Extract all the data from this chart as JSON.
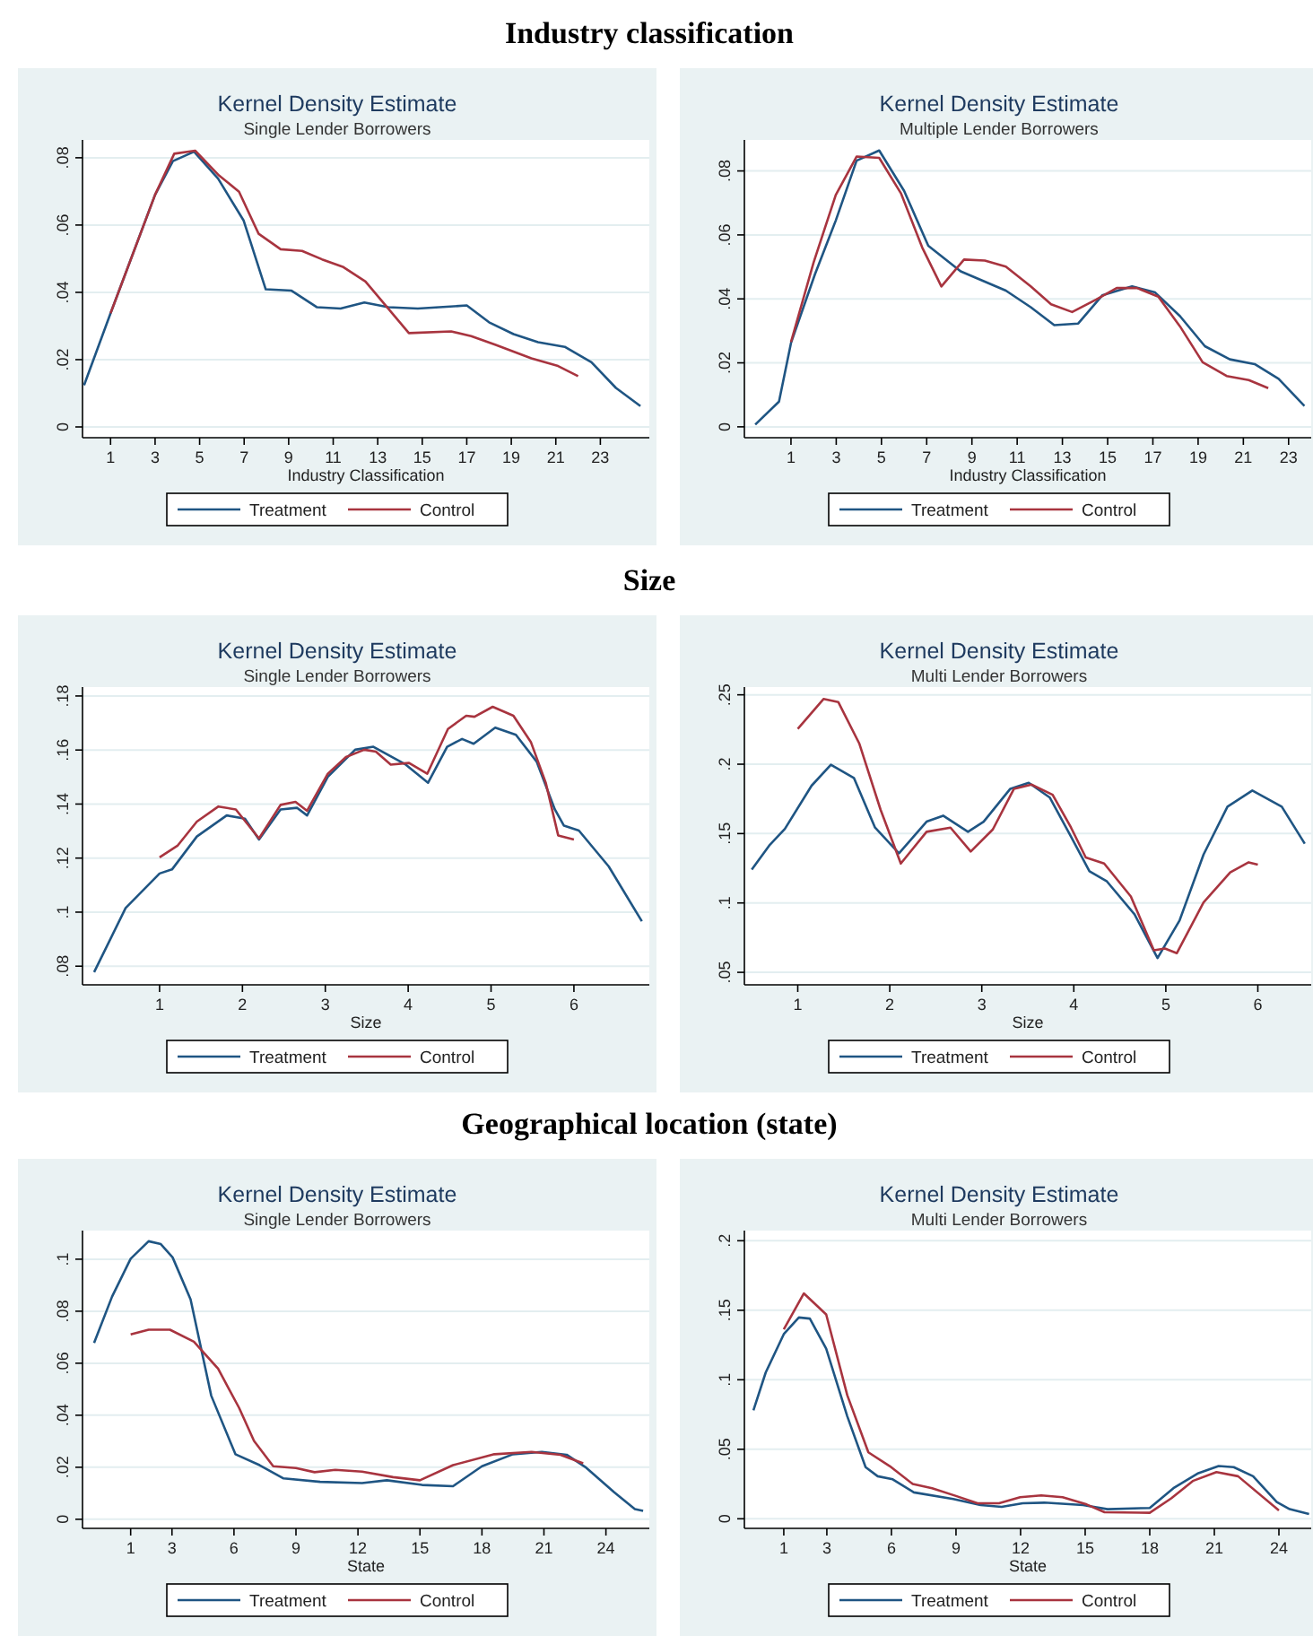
{
  "chart_data": [
    {
      "type": "line",
      "annotations": [
        "Industry classification"
      ],
      "title": "Kernel Density Estimate",
      "subtitle": "Single Lender Borrowers",
      "xlabel": "Industry Classification",
      "xlim": [
        -0.26,
        25.2
      ],
      "xticks": [
        1,
        3,
        5,
        7,
        9,
        11,
        13,
        15,
        17,
        19,
        21,
        23
      ],
      "ylim": [
        -0.0032,
        0.0853
      ],
      "yticks": [
        {
          "value": 0,
          "label": "0"
        },
        {
          "value": 0.02,
          "label": ".02"
        },
        {
          "value": 0.04,
          "label": ".04"
        },
        {
          "value": 0.06,
          "label": ".06"
        },
        {
          "value": 0.08,
          "label": ".08"
        }
      ],
      "grid": "y",
      "legend": "bottom",
      "series": [
        {
          "name": "Treatment",
          "color": "#1f5583",
          "x": [
            -0.19,
            1,
            3,
            3.8,
            4.75,
            5.83,
            6.98,
            7.97,
            9.13,
            10.26,
            11.33,
            12.4,
            13.48,
            14.8,
            17.0,
            18.0,
            19.1,
            20.2,
            21.4,
            22.6,
            23.7,
            24.8
          ],
          "values": [
            0.0124,
            0.0338,
            0.069,
            0.079,
            0.0818,
            0.0738,
            0.0613,
            0.0409,
            0.0405,
            0.0356,
            0.0352,
            0.037,
            0.0356,
            0.0352,
            0.0361,
            0.0311,
            0.0276,
            0.0252,
            0.0238,
            0.0192,
            0.0116,
            0.0062
          ]
        },
        {
          "name": "Control",
          "color": "#a8343f",
          "x": [
            1,
            3,
            3.86,
            4.8,
            5.83,
            6.77,
            7.65,
            8.64,
            9.6,
            10.5,
            11.46,
            12.45,
            14.4,
            16.3,
            17.2,
            18.3,
            19.9,
            21.1,
            22.0
          ],
          "values": [
            0.0338,
            0.069,
            0.0812,
            0.0821,
            0.075,
            0.0699,
            0.0574,
            0.0528,
            0.0523,
            0.0498,
            0.0475,
            0.0432,
            0.0279,
            0.0284,
            0.027,
            0.0244,
            0.0204,
            0.0181,
            0.0151
          ]
        }
      ]
    },
    {
      "type": "line",
      "title": "Kernel Density Estimate",
      "subtitle": "Multiple Lender Borrowers",
      "xlabel": "Industry Classification",
      "xlim": [
        -1.06,
        24.0
      ],
      "xticks": [
        1,
        3,
        5,
        7,
        9,
        11,
        13,
        15,
        17,
        19,
        21,
        23
      ],
      "ylim": [
        -0.0034,
        0.0897
      ],
      "yticks": [
        {
          "value": 0,
          "label": "0"
        },
        {
          "value": 0.02,
          "label": ".02"
        },
        {
          "value": 0.04,
          "label": ".04"
        },
        {
          "value": 0.06,
          "label": ".06"
        },
        {
          "value": 0.08,
          "label": ".08"
        }
      ],
      "grid": "y",
      "legend": "bottom",
      "series": [
        {
          "name": "Treatment",
          "color": "#1f5583",
          "x": [
            -0.58,
            0.47,
            1,
            2.06,
            2.98,
            3.9,
            4.9,
            6.0,
            7.07,
            8.5,
            10.5,
            11.6,
            12.64,
            13.7,
            14.76,
            16.08,
            17.1,
            18.2,
            19.3,
            20.4,
            21.5,
            22.56,
            23.7
          ],
          "values": [
            0.0007,
            0.0079,
            0.0262,
            0.0477,
            0.0645,
            0.0832,
            0.0864,
            0.0738,
            0.0566,
            0.0486,
            0.0426,
            0.0374,
            0.0318,
            0.0323,
            0.0411,
            0.0439,
            0.042,
            0.0346,
            0.0252,
            0.0211,
            0.0196,
            0.015,
            0.0065
          ]
        },
        {
          "name": "Control",
          "color": "#a8343f",
          "x": [
            1,
            2.0,
            2.98,
            3.9,
            4.9,
            5.87,
            6.8,
            7.65,
            8.65,
            9.57,
            10.5,
            11.6,
            12.5,
            13.43,
            14.5,
            15.4,
            16.3,
            17.24,
            18.2,
            19.2,
            20.26,
            21.24,
            22.1
          ],
          "values": [
            0.0265,
            0.0514,
            0.0725,
            0.0845,
            0.0841,
            0.0729,
            0.0561,
            0.0439,
            0.0523,
            0.052,
            0.0501,
            0.0439,
            0.0383,
            0.0359,
            0.0398,
            0.0434,
            0.0434,
            0.0407,
            0.0314,
            0.0202,
            0.0159,
            0.0146,
            0.0121
          ]
        }
      ]
    },
    {
      "type": "line",
      "annotations": [
        "Size"
      ],
      "title": "Kernel Density Estimate",
      "subtitle": "Single Lender Borrowers",
      "xlabel": "Size",
      "xlim": [
        0.07,
        6.91
      ],
      "xticks": [
        1,
        2,
        3,
        4,
        5,
        6
      ],
      "ylim": [
        0.0731,
        0.1833
      ],
      "yticks": [
        {
          "value": 0.08,
          "label": ".08"
        },
        {
          "value": 0.1,
          "label": ".1"
        },
        {
          "value": 0.12,
          "label": ".12"
        },
        {
          "value": 0.14,
          "label": ".14"
        },
        {
          "value": 0.16,
          "label": ".16"
        },
        {
          "value": 0.18,
          "label": ".18"
        }
      ],
      "grid": "y",
      "legend": "bottom",
      "series": [
        {
          "name": "Treatment",
          "color": "#1f5583",
          "x": [
            0.21,
            0.59,
            1,
            1.15,
            1.45,
            1.81,
            2.03,
            2.2,
            2.46,
            2.66,
            2.78,
            3.03,
            3.36,
            3.58,
            3.97,
            4.24,
            4.47,
            4.65,
            4.79,
            5.05,
            5.3,
            5.55,
            5.77,
            5.88,
            6.06,
            6.42,
            6.82
          ],
          "values": [
            0.0778,
            0.1015,
            0.1143,
            0.1158,
            0.128,
            0.1358,
            0.1346,
            0.1269,
            0.138,
            0.1386,
            0.1358,
            0.1501,
            0.1601,
            0.1612,
            0.1546,
            0.1479,
            0.1612,
            0.1641,
            0.1623,
            0.1683,
            0.1656,
            0.1557,
            0.138,
            0.132,
            0.1302,
            0.1169,
            0.0966
          ]
        },
        {
          "name": "Control",
          "color": "#a8343f",
          "x": [
            1,
            1.22,
            1.45,
            1.71,
            1.92,
            2.2,
            2.46,
            2.64,
            2.78,
            3.03,
            3.25,
            3.47,
            3.61,
            3.79,
            4.01,
            4.23,
            4.48,
            4.7,
            4.8,
            5.02,
            5.27,
            5.48,
            5.66,
            5.81,
            6.0
          ],
          "values": [
            0.1203,
            0.1247,
            0.1335,
            0.1391,
            0.138,
            0.1273,
            0.1397,
            0.1408,
            0.1375,
            0.1512,
            0.1574,
            0.1601,
            0.1594,
            0.1546,
            0.1552,
            0.1512,
            0.1678,
            0.1727,
            0.1723,
            0.176,
            0.1727,
            0.163,
            0.1479,
            0.1284,
            0.1269
          ]
        }
      ]
    },
    {
      "type": "line",
      "title": "Kernel Density Estimate",
      "subtitle": "Multi Lender Borrowers",
      "xlabel": "Size",
      "xlim": [
        0.42,
        6.58
      ],
      "xticks": [
        1,
        2,
        3,
        4,
        5,
        6
      ],
      "ylim": [
        0.041,
        0.2556
      ],
      "yticks": [
        {
          "value": 0.05,
          "label": ".05"
        },
        {
          "value": 0.1,
          "label": ".1"
        },
        {
          "value": 0.15,
          "label": ".15"
        },
        {
          "value": 0.2,
          "label": ".2"
        },
        {
          "value": 0.25,
          "label": ".25"
        }
      ],
      "grid": "y",
      "legend": "bottom",
      "series": [
        {
          "name": "Treatment",
          "color": "#1f5583",
          "x": [
            0.5,
            0.69,
            0.86,
            1.15,
            1.36,
            1.61,
            1.84,
            2.1,
            2.4,
            2.58,
            2.85,
            3.02,
            3.31,
            3.51,
            3.74,
            3.97,
            4.17,
            4.36,
            4.66,
            4.91,
            5.15,
            5.41,
            5.67,
            5.94,
            6.26,
            6.51
          ],
          "values": [
            0.1241,
            0.1414,
            0.1534,
            0.1845,
            0.1996,
            0.1901,
            0.1543,
            0.1358,
            0.1586,
            0.1629,
            0.1513,
            0.1586,
            0.1823,
            0.1866,
            0.1759,
            0.1478,
            0.1228,
            0.1155,
            0.0918,
            0.0603,
            0.0875,
            0.1349,
            0.1694,
            0.181,
            0.1694,
            0.1427
          ]
        },
        {
          "name": "Control",
          "color": "#a8343f",
          "x": [
            1,
            1.28,
            1.44,
            1.67,
            1.9,
            2.12,
            2.4,
            2.66,
            2.88,
            3.12,
            3.35,
            3.54,
            3.77,
            3.97,
            4.13,
            4.33,
            4.62,
            4.87,
            4.99,
            5.12,
            5.41,
            5.7,
            5.9,
            6.0
          ],
          "values": [
            0.2254,
            0.247,
            0.2448,
            0.2147,
            0.1672,
            0.1284,
            0.1513,
            0.1543,
            0.1371,
            0.153,
            0.1823,
            0.1853,
            0.178,
            0.1543,
            0.1328,
            0.1284,
            0.1047,
            0.0659,
            0.0672,
            0.0638,
            0.1004,
            0.122,
            0.1293,
            0.1276
          ]
        }
      ]
    },
    {
      "type": "line",
      "annotations": [
        "Geographical location (state)"
      ],
      "title": "Kernel Density Estimate",
      "subtitle": "Single Lender Borrowers",
      "xlabel": "State",
      "xlim": [
        -1.33,
        26.1
      ],
      "xticks": [
        1,
        3,
        6,
        9,
        12,
        15,
        18,
        21,
        24
      ],
      "ylim": [
        -0.0035,
        0.111
      ],
      "yticks": [
        {
          "value": 0,
          "label": "0"
        },
        {
          "value": 0.02,
          "label": ".02"
        },
        {
          "value": 0.04,
          "label": ".04"
        },
        {
          "value": 0.06,
          "label": ".06"
        },
        {
          "value": 0.08,
          "label": ".08"
        },
        {
          "value": 0.1,
          "label": ".1"
        }
      ],
      "grid": "y",
      "legend": "bottom",
      "series": [
        {
          "name": "Treatment",
          "color": "#1f5583",
          "x": [
            -0.77,
            0.1,
            1,
            1.87,
            2.46,
            3.03,
            3.9,
            4.9,
            6.07,
            7.24,
            8.4,
            10.17,
            12.2,
            13.4,
            15.1,
            16.6,
            18.0,
            19.5,
            20.9,
            22.1,
            23.0,
            24.4,
            25.4,
            25.8
          ],
          "values": [
            0.0678,
            0.0856,
            0.1002,
            0.1069,
            0.1058,
            0.1007,
            0.0845,
            0.0475,
            0.025,
            0.0208,
            0.0157,
            0.0144,
            0.0139,
            0.015,
            0.0132,
            0.0127,
            0.0204,
            0.025,
            0.0259,
            0.0248,
            0.0201,
            0.0104,
            0.0039,
            0.0032
          ]
        },
        {
          "name": "Control",
          "color": "#a8343f",
          "x": [
            1,
            1.87,
            2.9,
            4.06,
            5.23,
            6.25,
            6.97,
            7.9,
            9.0,
            9.9,
            10.9,
            12.2,
            13.7,
            15.0,
            16.6,
            18.6,
            20.4,
            21.8,
            22.9
          ],
          "values": [
            0.0711,
            0.0729,
            0.0729,
            0.0683,
            0.0579,
            0.0428,
            0.0301,
            0.0204,
            0.0197,
            0.0181,
            0.019,
            0.0183,
            0.0162,
            0.015,
            0.0208,
            0.025,
            0.0259,
            0.0248,
            0.0215
          ]
        }
      ]
    },
    {
      "type": "line",
      "title": "Kernel Density Estimate",
      "subtitle": "Multi Lender Borrowers",
      "xlabel": "State",
      "xlim": [
        -0.83,
        25.5
      ],
      "xticks": [
        1,
        3,
        6,
        9,
        12,
        15,
        18,
        21,
        24
      ],
      "ylim": [
        -0.0069,
        0.2073
      ],
      "yticks": [
        {
          "value": 0,
          "label": "0"
        },
        {
          "value": 0.05,
          "label": ".05"
        },
        {
          "value": 0.1,
          "label": ".1"
        },
        {
          "value": 0.15,
          "label": ".15"
        },
        {
          "value": 0.2,
          "label": ".2"
        }
      ],
      "grid": "y",
      "legend": "bottom",
      "series": [
        {
          "name": "Treatment",
          "color": "#1f5583",
          "x": [
            -0.41,
            0.16,
            1,
            1.7,
            2.21,
            2.97,
            3.95,
            4.8,
            5.36,
            6.06,
            7.04,
            8.87,
            10.14,
            11.12,
            12.1,
            13.1,
            14.9,
            16.04,
            18.0,
            19.1,
            20.26,
            21.2,
            21.9,
            22.8,
            23.9,
            24.5,
            25.4
          ],
          "values": [
            0.078,
            0.1052,
            0.1328,
            0.1448,
            0.144,
            0.1224,
            0.0737,
            0.0371,
            0.0306,
            0.0284,
            0.019,
            0.0142,
            0.0099,
            0.0086,
            0.0112,
            0.0116,
            0.0099,
            0.0069,
            0.0078,
            0.022,
            0.0328,
            0.0379,
            0.0371,
            0.0306,
            0.0121,
            0.0069,
            0.0034
          ]
        },
        {
          "name": "Control",
          "color": "#a8343f",
          "x": [
            1,
            1.93,
            2.97,
            3.95,
            4.93,
            5.92,
            6.99,
            7.89,
            9.0,
            10.0,
            11.0,
            11.98,
            12.96,
            13.95,
            15.07,
            15.9,
            18.0,
            19.0,
            20.0,
            21.1,
            22.1,
            24.0
          ],
          "values": [
            0.1362,
            0.1621,
            0.147,
            0.0888,
            0.0478,
            0.0379,
            0.025,
            0.022,
            0.0164,
            0.0112,
            0.0112,
            0.0155,
            0.0168,
            0.0155,
            0.0103,
            0.0047,
            0.0043,
            0.0147,
            0.0272,
            0.0336,
            0.0306,
            0.006
          ]
        }
      ]
    }
  ]
}
